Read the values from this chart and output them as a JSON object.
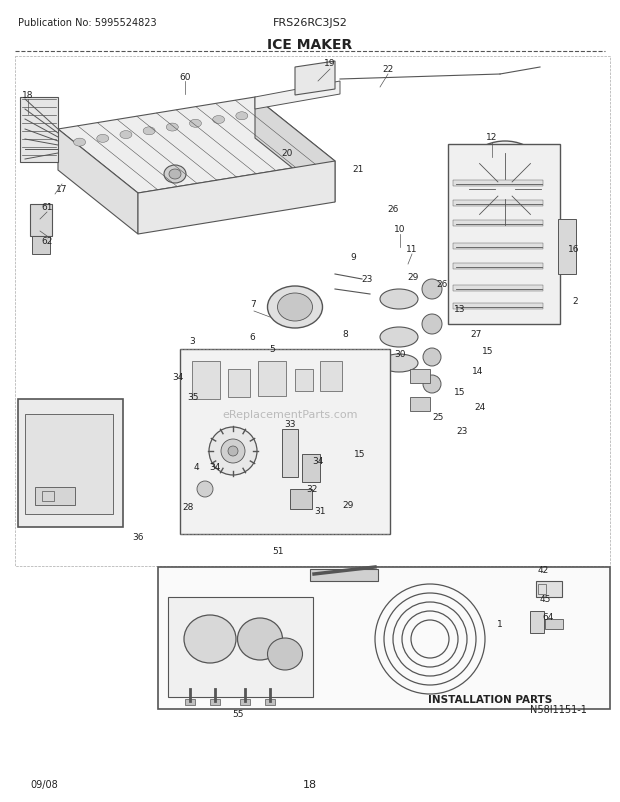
{
  "title": "ICE MAKER",
  "pub_no": "Publication No: 5995524823",
  "model": "FRS26RC3JS2",
  "diagram_id": "N58I1151-1",
  "date": "09/08",
  "page": "18",
  "bg_color": "#ffffff",
  "line_color": "#555555",
  "text_color": "#222222",
  "install_parts_label": "INSTALLATION PARTS",
  "watermark": "eReplacementParts.com"
}
